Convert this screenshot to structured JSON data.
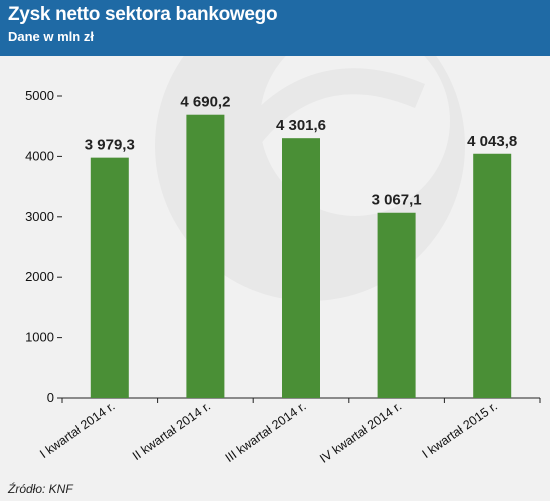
{
  "header": {
    "title": "Zysk netto sektora bankowego",
    "subtitle": "Dane w mln zł"
  },
  "footer": {
    "source": "Źródło: KNF"
  },
  "colors": {
    "bar": "#4a8f36",
    "header_bg": "#1f6aa5",
    "background": "#f1f1f1"
  },
  "chart_data": {
    "type": "bar",
    "categories": [
      "I kwartał 2014 r.",
      "II kwartał 2014 r.",
      "III kwartał 2014 r.",
      "IV kwartał 2014 r.",
      "I kwartał 2015 r."
    ],
    "values": [
      3979.3,
      4690.2,
      4301.6,
      3067.1,
      4043.8
    ],
    "data_labels": [
      "3 979,3",
      "4 690,2",
      "4 301,6",
      "3 067,1",
      "4 043,8"
    ],
    "yticks": [
      0,
      1000,
      2000,
      3000,
      4000,
      5000
    ],
    "ylim": [
      0,
      5000
    ],
    "grid": false,
    "legend": "none"
  }
}
